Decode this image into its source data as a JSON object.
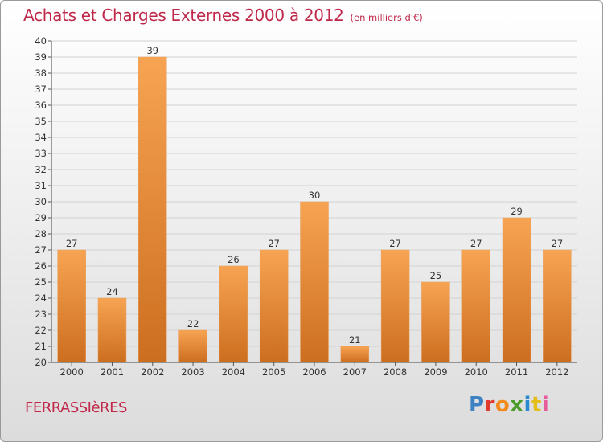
{
  "header": {
    "title": "Achats et Charges Externes 2000 à 2012",
    "unit": "(en milliers d'€)"
  },
  "footer": {
    "location": "FERRASSIèRES",
    "logo_text": "Proxiti"
  },
  "colors": {
    "title": "#c0284a",
    "bar_light": "#f7a452",
    "bar_dark": "#cc6e1f",
    "logo_letters": [
      "#3f82c4",
      "#e23a2c",
      "#f28a1c",
      "#4a9d2b",
      "#2a8ad0",
      "#e4bd18",
      "#e65c9a"
    ]
  },
  "chart_data": {
    "type": "bar",
    "title": "Achats et Charges Externes 2000 à 2012",
    "subtitle": "(en milliers d'€)",
    "xlabel": "",
    "ylabel": "",
    "categories": [
      "2000",
      "2001",
      "2002",
      "2003",
      "2004",
      "2005",
      "2006",
      "2007",
      "2008",
      "2009",
      "2010",
      "2011",
      "2012"
    ],
    "values": [
      27,
      24,
      39,
      22,
      26,
      27,
      30,
      21,
      27,
      25,
      27,
      29,
      27
    ],
    "ylim": [
      20,
      40
    ],
    "yticks": [
      20,
      21,
      22,
      23,
      24,
      25,
      26,
      27,
      28,
      29,
      30,
      31,
      32,
      33,
      34,
      35,
      36,
      37,
      38,
      39,
      40
    ],
    "grid": true,
    "legend": "none"
  }
}
